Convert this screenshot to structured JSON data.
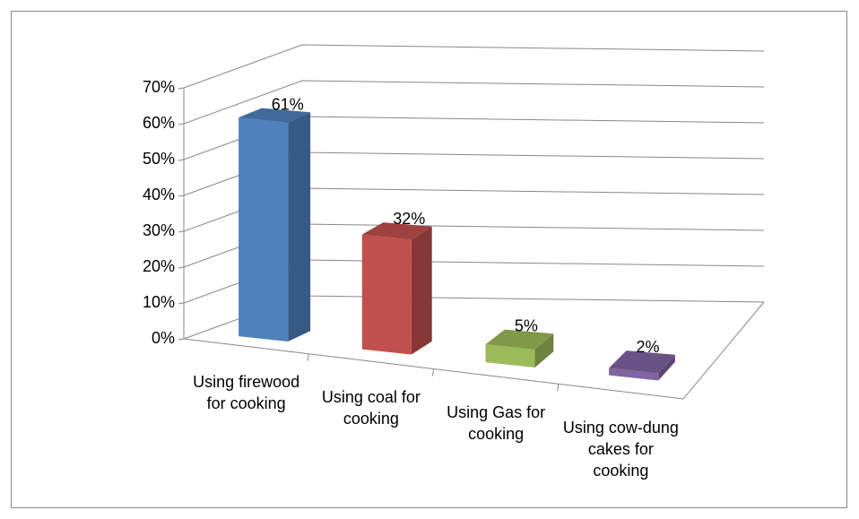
{
  "chart_data": {
    "type": "bar3d",
    "categories": [
      "Using firewood for cooking",
      "Using coal for cooking",
      "Using Gas for cooking",
      "Using cow-dung cakes for cooking"
    ],
    "series": [
      {
        "name": null,
        "colors": [
          "#4f81bd",
          "#c0504d",
          "#9bbb59",
          "#8064a2"
        ],
        "values": [
          61,
          32,
          5,
          2
        ],
        "value_labels": [
          "61%",
          "32%",
          "5%",
          "2%"
        ]
      }
    ],
    "ylim": [
      0,
      70
    ],
    "yticks": [
      {
        "value": 0,
        "label": "0%"
      },
      {
        "value": 10,
        "label": "10%"
      },
      {
        "value": 20,
        "label": "20%"
      },
      {
        "value": 30,
        "label": "30%"
      },
      {
        "value": 40,
        "label": "40%"
      },
      {
        "value": 50,
        "label": "50%"
      },
      {
        "value": 60,
        "label": "60%"
      },
      {
        "value": 70,
        "label": "70%"
      }
    ],
    "grid": true
  }
}
